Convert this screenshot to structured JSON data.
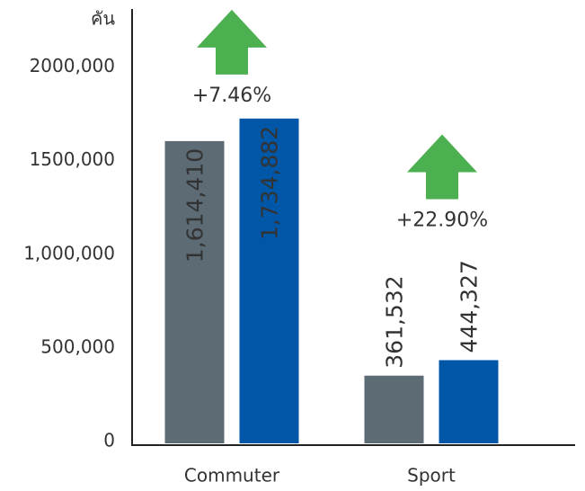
{
  "chart_data": {
    "type": "bar",
    "y_label": "คัน",
    "categories": [
      "Commuter",
      "Sport"
    ],
    "series": [
      {
        "color": "#5d6b75",
        "values": [
          1614410,
          361532
        ],
        "value_labels": [
          "1,614,410",
          "361,532"
        ]
      },
      {
        "color": "#0057a8",
        "values": [
          1734882,
          444327
        ],
        "value_labels": [
          "1,734,882",
          "444,327"
        ]
      }
    ],
    "annotations": [
      "+7.46%",
      "+22.90%"
    ],
    "annotation_color": "#4caf50",
    "ylim": [
      0,
      2320000
    ],
    "yticks": [
      0,
      {
        "value": 500000,
        "label": "500,000"
      },
      {
        "value": 1000000,
        "label": "1,000,000"
      },
      {
        "value": 1500000,
        "label": "1500,000"
      },
      {
        "value": 2000000,
        "label": "2000,000"
      }
    ],
    "grid": false
  }
}
